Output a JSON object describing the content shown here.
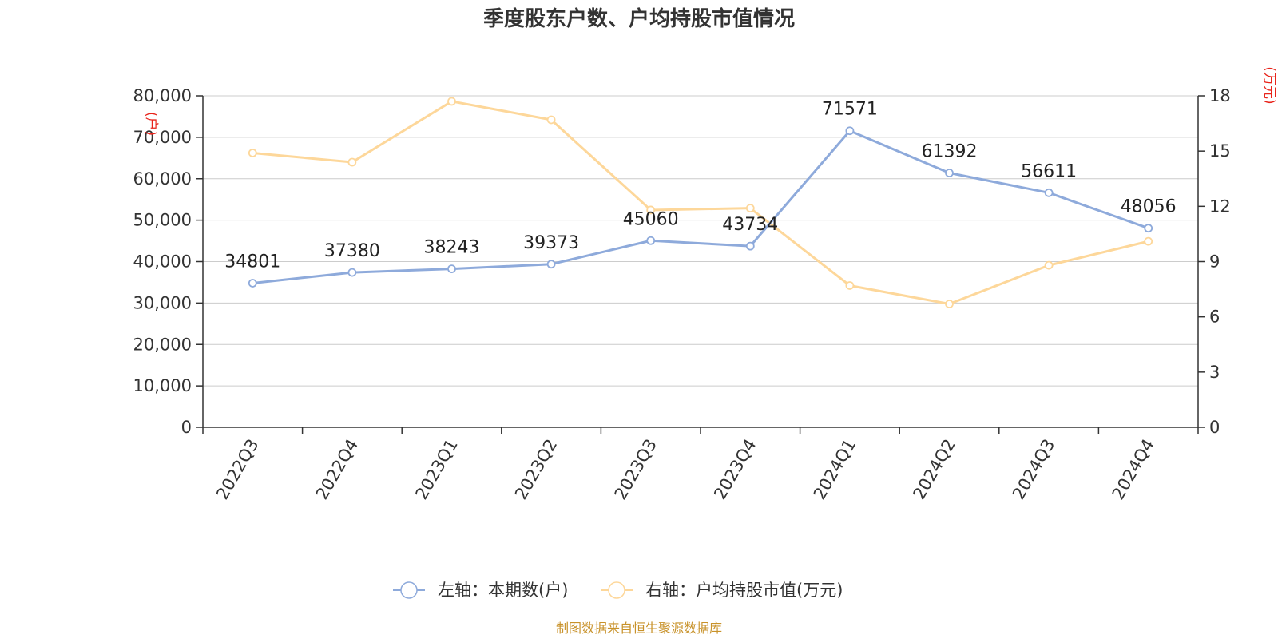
{
  "chart_data": {
    "type": "line",
    "title": "季度股东户数、户均持股市值情况",
    "categories": [
      "2022Q3",
      "2022Q4",
      "2023Q1",
      "2023Q2",
      "2023Q3",
      "2023Q4",
      "2024Q1",
      "2024Q2",
      "2024Q3",
      "2024Q4"
    ],
    "left_axis": {
      "unit": "(户)",
      "ylim": [
        0,
        80000
      ],
      "ticks": [
        0,
        10000,
        20000,
        30000,
        40000,
        50000,
        60000,
        70000,
        80000
      ],
      "tick_labels": [
        "0",
        "10,000",
        "20,000",
        "30,000",
        "40,000",
        "50,000",
        "60,000",
        "70,000",
        "80,000"
      ]
    },
    "right_axis": {
      "unit": "(万元)",
      "ylim": [
        0,
        18
      ],
      "ticks": [
        0,
        3,
        6,
        9,
        12,
        15,
        18
      ],
      "tick_labels": [
        "0",
        "3",
        "6",
        "9",
        "12",
        "15",
        "18"
      ]
    },
    "series": [
      {
        "name": "左轴：本期数(户)",
        "axis": "left",
        "color": "#8eaadb",
        "values": [
          34801,
          37380,
          38243,
          39373,
          45060,
          43734,
          71571,
          61392,
          56611,
          48056
        ],
        "labels": [
          "34801",
          "37380",
          "38243",
          "39373",
          "45060",
          "43734",
          "71571",
          "61392",
          "56611",
          "48056"
        ]
      },
      {
        "name": "右轴：户均持股市值(万元)",
        "axis": "right",
        "color": "#fdd79a",
        "values": [
          14.9,
          14.4,
          17.7,
          16.7,
          11.8,
          11.9,
          7.7,
          6.7,
          8.8,
          10.1
        ]
      }
    ],
    "grid": true,
    "legend_position": "bottom-center",
    "source": "制图数据来自恒生聚源数据库"
  }
}
